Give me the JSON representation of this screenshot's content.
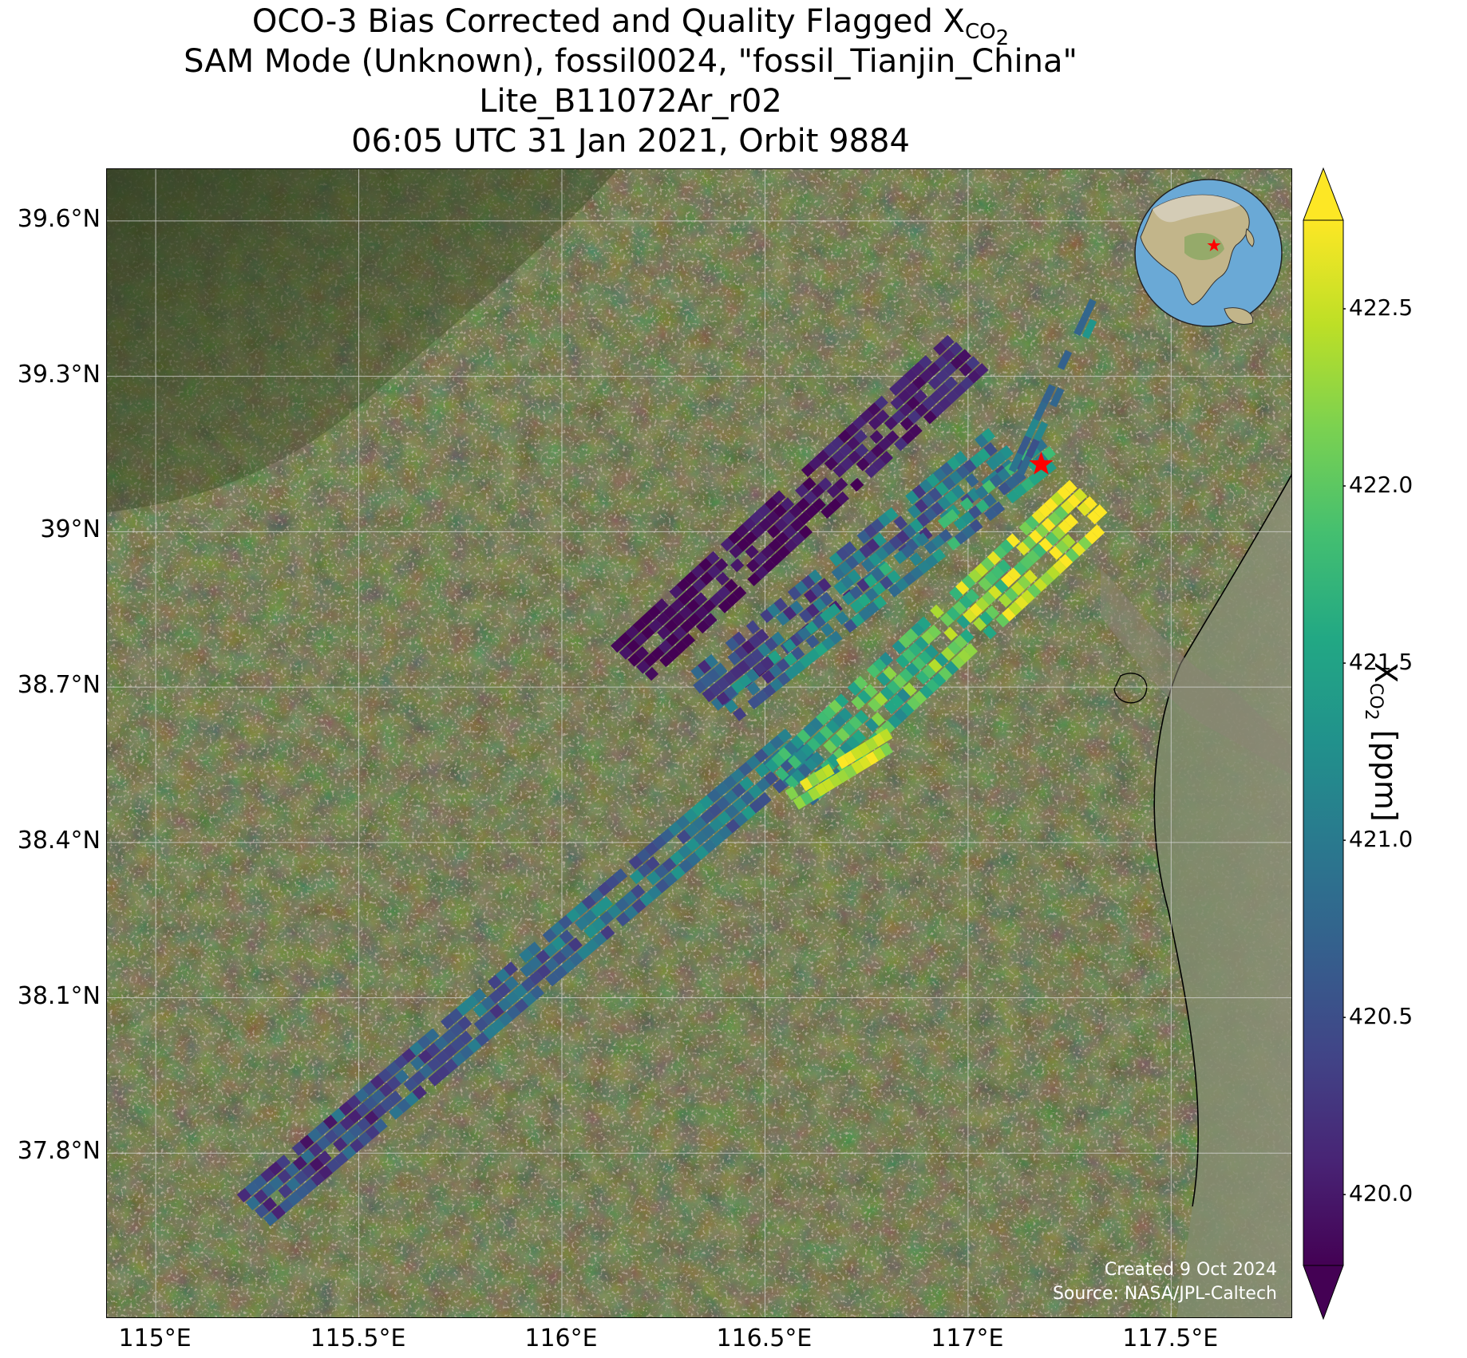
{
  "title": {
    "line1_prefix": "OCO-3 Bias Corrected and Quality Flagged X",
    "line1_sub": "CO",
    "line1_subsub": "2",
    "line2": "SAM Mode (Unknown), fossil0024, \"fossil_Tianjin_China\"",
    "line3": "Lite_B11072Ar_r02",
    "line4": "06:05 UTC 31 Jan 2021, Orbit 9884"
  },
  "map": {
    "lon_range": [
      114.88,
      117.8
    ],
    "lat_range": [
      37.48,
      39.7
    ],
    "lat_ticks": [
      {
        "value": 39.6,
        "label": "39.6°N"
      },
      {
        "value": 39.3,
        "label": "39.3°N"
      },
      {
        "value": 39.0,
        "label": "39°N"
      },
      {
        "value": 38.7,
        "label": "38.7°N"
      },
      {
        "value": 38.4,
        "label": "38.4°N"
      },
      {
        "value": 38.1,
        "label": "38.1°N"
      },
      {
        "value": 37.8,
        "label": "37.8°N"
      }
    ],
    "lon_ticks": [
      {
        "value": 115.0,
        "label": "115°E"
      },
      {
        "value": 115.5,
        "label": "115.5°E"
      },
      {
        "value": 116.0,
        "label": "116°E"
      },
      {
        "value": 116.5,
        "label": "116.5°E"
      },
      {
        "value": 117.0,
        "label": "117°E"
      },
      {
        "value": 117.5,
        "label": "117.5°E"
      }
    ],
    "target": {
      "lon": 117.18,
      "lat": 39.13
    },
    "colors": {
      "land": "#4f5a31",
      "star": "#ff0000",
      "grid": "#d8d8d8"
    }
  },
  "credits": {
    "created": "Created 9 Oct 2024",
    "source": "Source: NASA/JPL-Caltech"
  },
  "colorbar": {
    "vmin": 419.8,
    "vmax": 422.75,
    "label_prefix": "X",
    "label_sub": "CO",
    "label_subsub": "2",
    "label_suffix": " [ppm]",
    "ticks": [
      {
        "value": 422.5,
        "label": "422.5"
      },
      {
        "value": 422.0,
        "label": "422.0"
      },
      {
        "value": 421.5,
        "label": "421.5"
      },
      {
        "value": 421.0,
        "label": "421.0"
      },
      {
        "value": 420.5,
        "label": "420.5"
      },
      {
        "value": 420.0,
        "label": "420.0"
      }
    ],
    "colormap": "viridis"
  }
}
